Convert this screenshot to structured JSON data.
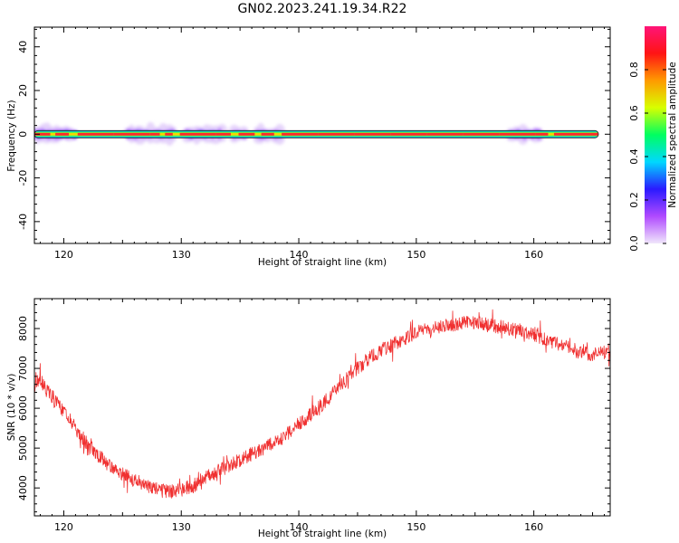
{
  "figure_title": "GN02.2023.241.19.34.R22",
  "chart_data": [
    {
      "type": "heatmap",
      "xlabel": "Height of straight line (km)",
      "ylabel": "Frequency (Hz)",
      "xlim": [
        117.5,
        166.5
      ],
      "ylim": [
        -50,
        49
      ],
      "xticks": [
        120,
        130,
        140,
        150,
        160
      ],
      "yticks": [
        -40,
        -20,
        0,
        20,
        40
      ],
      "track": {
        "frequency_hz": 0,
        "x_start_km": 117.5,
        "x_end_km": 165.5
      },
      "colorbar": {
        "label": "Normalized spectral amplitude",
        "ticks": [
          0.0,
          0.2,
          0.4,
          0.6,
          0.8
        ],
        "range": [
          0,
          1
        ],
        "colors": [
          "#f0e6fb",
          "#b04aff",
          "#2a1aff",
          "#00d8ff",
          "#00ff60",
          "#d8ff00",
          "#ff9a00",
          "#ff1414",
          "#ff1478"
        ]
      },
      "noisy_segments_km": [
        [
          117.5,
          121
        ],
        [
          125.5,
          129.5
        ],
        [
          130.5,
          133.5
        ],
        [
          134.5,
          135.5
        ],
        [
          136.5,
          138.5
        ],
        [
          158,
          160.5
        ]
      ]
    },
    {
      "type": "line",
      "xlabel": "Height of straight line (km)",
      "ylabel": "SNR (10 * v/v)",
      "xlim": [
        117.5,
        166.5
      ],
      "ylim": [
        3300,
        8750
      ],
      "xticks": [
        120,
        130,
        140,
        150,
        160
      ],
      "yticks": [
        4000,
        5000,
        6000,
        7000,
        8000
      ],
      "line_color": "#f03030",
      "x": [
        117.5,
        118,
        119,
        120,
        121,
        122,
        123,
        124,
        125,
        126,
        127,
        128,
        129,
        130,
        131,
        132,
        133,
        134,
        135,
        136,
        137,
        138,
        139,
        140,
        141,
        142,
        143,
        144,
        145,
        146,
        147,
        148,
        149,
        150,
        151,
        152,
        153,
        154,
        155,
        156,
        157,
        158,
        159,
        160,
        161,
        162,
        163,
        164,
        165,
        166.5
      ],
      "y": [
        6600,
        6700,
        6300,
        5900,
        5500,
        5100,
        4800,
        4550,
        4350,
        4200,
        4050,
        3950,
        3900,
        3950,
        4050,
        4250,
        4400,
        4550,
        4700,
        4850,
        5000,
        5150,
        5350,
        5600,
        5850,
        6100,
        6400,
        6700,
        7000,
        7250,
        7450,
        7600,
        7750,
        7900,
        8000,
        8050,
        8100,
        8150,
        8150,
        8100,
        8050,
        8000,
        7950,
        7850,
        7750,
        7600,
        7500,
        7400,
        7350,
        7450
      ]
    }
  ]
}
